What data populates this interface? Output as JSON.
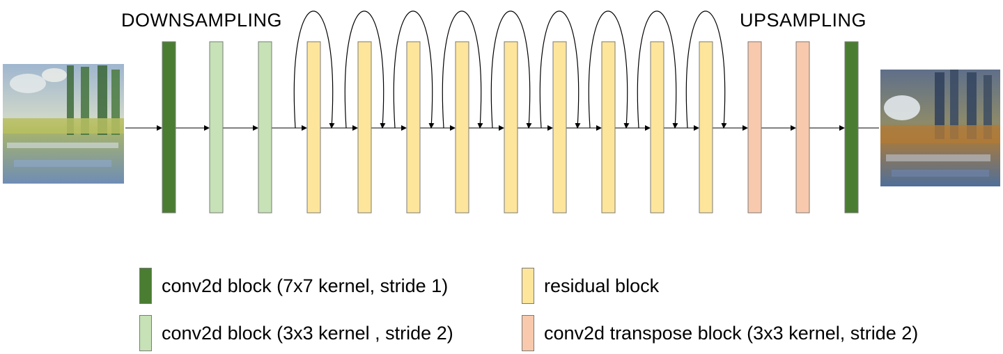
{
  "titles": {
    "downsampling": "DOWNSAMPLING",
    "upsampling": "UPSAMPLING"
  },
  "colors": {
    "conv7": "#4a7d32",
    "conv3": "#c6e2b6",
    "residual": "#fde59b",
    "transpose": "#f8c9ac",
    "border": "#7a7a7a",
    "arrow": "#000000"
  },
  "images": {
    "input": "monet-painting-input",
    "output": "generated-painting-output"
  },
  "pipeline": [
    "conv7",
    "conv3",
    "conv3",
    "residual",
    "residual",
    "residual",
    "residual",
    "residual",
    "residual",
    "residual",
    "residual",
    "residual",
    "transpose",
    "transpose",
    "conv7"
  ],
  "legend": [
    {
      "key": "conv7",
      "label": "conv2d block (7x7 kernel, stride 1)"
    },
    {
      "key": "residual",
      "label": "residual block"
    },
    {
      "key": "conv3",
      "label": "conv2d block (3x3 kernel , stride 2)"
    },
    {
      "key": "transpose",
      "label": "conv2d transpose block (3x3 kernel, stride 2)"
    }
  ]
}
